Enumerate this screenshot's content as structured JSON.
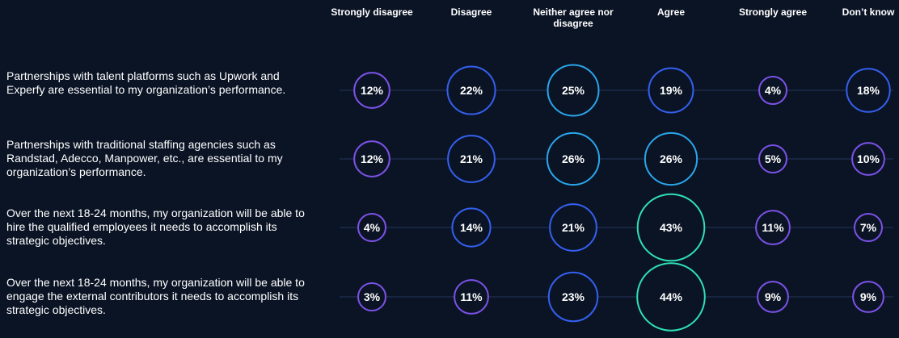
{
  "chart_data": {
    "type": "bubble",
    "columns": [
      "Strongly disagree",
      "Disagree",
      "Neither agree nor disagree",
      "Agree",
      "Strongly agree",
      "Don’t know"
    ],
    "series": [
      {
        "name": "Partnerships with talent platforms such as Upwork and Experfy are essential to my organization’s performance.",
        "values": [
          12,
          22,
          25,
          19,
          4,
          18
        ],
        "value_labels": [
          "12%",
          "22%",
          "25%",
          "19%",
          "4%",
          "18%"
        ],
        "colors": [
          "#7c52e8",
          "#3460f0",
          "#2aa6ec",
          "#3460f0",
          "#7c52e8",
          "#3460f0"
        ]
      },
      {
        "name": "Partnerships with traditional staffing agencies such as Randstad, Adecco, Manpower, etc., are essential to my organization’s performance.",
        "values": [
          12,
          21,
          26,
          26,
          5,
          10
        ],
        "value_labels": [
          "12%",
          "21%",
          "26%",
          "26%",
          "5%",
          "10%"
        ],
        "colors": [
          "#7c52e8",
          "#3460f0",
          "#2aa6ec",
          "#2aa6ec",
          "#7c52e8",
          "#7c52e8"
        ]
      },
      {
        "name": "Over the next 18-24 months, my organization will be able to hire the qualified employees it needs to accomplish its strategic objectives.",
        "values": [
          4,
          14,
          21,
          43,
          11,
          7
        ],
        "value_labels": [
          "4%",
          "14%",
          "21%",
          "43%",
          "11%",
          "7%"
        ],
        "colors": [
          "#7c52e8",
          "#3460f0",
          "#3460f0",
          "#2fe0b4",
          "#7c52e8",
          "#7c52e8"
        ]
      },
      {
        "name": "Over the next 18-24 months, my organization will be able to engage the external contributors it needs to accomplish its strategic objectives.",
        "values": [
          3,
          11,
          23,
          44,
          9,
          9
        ],
        "value_labels": [
          "3%",
          "11%",
          "23%",
          "44%",
          "9%",
          "9%"
        ],
        "colors": [
          "#7c52e8",
          "#7c52e8",
          "#3460f0",
          "#2fe0b4",
          "#7c52e8",
          "#7c52e8"
        ]
      }
    ]
  }
}
